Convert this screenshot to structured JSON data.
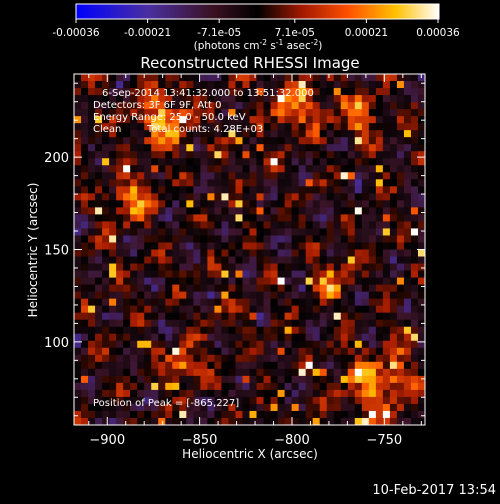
{
  "colorbar": {
    "ticks": [
      "-0.00036",
      "-0.00021",
      "-7.1e-05",
      "7.1e-05",
      "0.00021",
      "0.00036"
    ],
    "unit_label": "(photons cm",
    "unit_label_sup1": "-2",
    "unit_label_mid": " s",
    "unit_label_sup2": "-1",
    "unit_label_end": " asec",
    "unit_label_sup3": "-2",
    "unit_label_close": ")",
    "colors": [
      "#0000ff",
      "#4a2fa0",
      "#2a1010",
      "#000000",
      "#c02000",
      "#ff6000",
      "#ffc000",
      "#ffffff"
    ]
  },
  "chart_data": {
    "type": "heatmap",
    "title": "Reconstructed RHESSI Image",
    "xlabel": "Heliocentric X (arcsec)",
    "ylabel": "Heliocentric Y (arcsec)",
    "xlim": [
      -918,
      -728
    ],
    "ylim": [
      55,
      245
    ],
    "x_ticks": [
      -900,
      -850,
      -800,
      -750
    ],
    "y_ticks": [
      100,
      150,
      200
    ],
    "x_tick_labels": [
      "−900",
      "−850",
      "−800",
      "−750"
    ],
    "y_tick_labels": [
      "100",
      "150",
      "200"
    ],
    "value_range": [
      -0.00036,
      0.00036
    ],
    "peak_position": [
      -865,
      227
    ],
    "grid": false
  },
  "annotations": {
    "line1": "6-Sep-2014 13:41:32.000 to 13:51:32.000",
    "line2": "Detectors: 3F 6F 9F, Att 0",
    "line3": "Energy Range: 25.0 - 50.0 keV",
    "line4_method": "Clean",
    "line4_counts": "Total counts: 4.28E+03",
    "peak": "Position of Peak = [-865,227]"
  },
  "timestamp": "10-Feb-2017 13:54"
}
